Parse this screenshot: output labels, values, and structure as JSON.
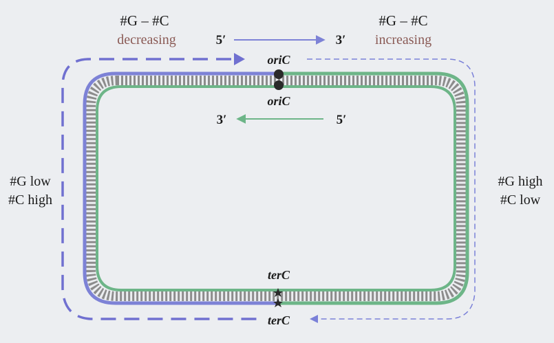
{
  "labels": {
    "top_left_title": "#G – #C",
    "top_left_sub": "decreasing",
    "top_right_title": "#G – #C",
    "top_right_sub": "increasing",
    "top_strand_5": "5′",
    "top_strand_3": "3′",
    "inner_strand_3": "3′",
    "inner_strand_5": "5′",
    "ori_top": "oriC",
    "ori_inner": "oriC",
    "ter_inner": "terC",
    "ter_bottom": "terC",
    "left_line1": "#G low",
    "left_line2": "#C high",
    "right_line1": "#G high",
    "right_line2": "#C low"
  },
  "colors": {
    "background": "#eceef1",
    "blue_strand": "#7d82d6",
    "green_strand": "#6db588",
    "bp_hatch": "#8c8c8c",
    "text_dark": "#1a1a1a",
    "text_sub": "#8a5a55",
    "dashed_blue": "#7070d0",
    "dashed_right": "#7a80d8",
    "marker": "#2a2a2a"
  }
}
